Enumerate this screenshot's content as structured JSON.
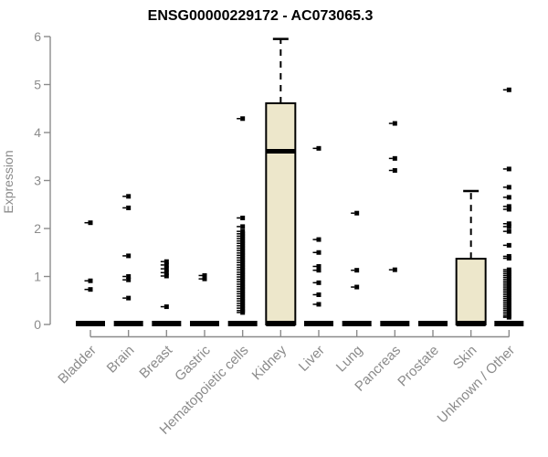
{
  "page": {
    "background": "#ffffff"
  },
  "chart_data": {
    "type": "boxplot",
    "title": "ENSG00000229172 - AC073065.3",
    "xlabel": "",
    "ylabel": "Expression",
    "ylim": [
      0,
      6
    ],
    "yticks": [
      0,
      1,
      2,
      3,
      4,
      5,
      6
    ],
    "grid": false,
    "legend": "none",
    "colors": {
      "box_fill": "#ede7cb",
      "box_stroke": "#000000",
      "median": "#000000",
      "outlier": "#000000",
      "axis": "#8b8b8b",
      "title": "#000000"
    },
    "categories": [
      "Bladder",
      "Brain",
      "Breast",
      "Gastric",
      "Hematopoietic cells",
      "Kidney",
      "Liver",
      "Lung",
      "Pancreas",
      "Prostate",
      "Skin",
      "Unknown / Other"
    ],
    "boxes": [
      {
        "category": "Bladder",
        "q1": 0,
        "median": 0,
        "q3": 0,
        "whisker_low": 0,
        "whisker_high": 0,
        "outliers": [
          2.12,
          0.91,
          0.73
        ]
      },
      {
        "category": "Brain",
        "q1": 0,
        "median": 0,
        "q3": 0,
        "whisker_low": 0,
        "whisker_high": 0,
        "outliers": [
          2.67,
          2.43,
          1.43,
          1.0,
          0.93,
          0.55
        ]
      },
      {
        "category": "Breast",
        "q1": 0,
        "median": 0,
        "q3": 0,
        "whisker_low": 0,
        "whisker_high": 0,
        "outliers": [
          1.31,
          1.24,
          1.16,
          1.08,
          1.01,
          0.37
        ]
      },
      {
        "category": "Gastric",
        "q1": 0,
        "median": 0,
        "q3": 0,
        "whisker_low": 0,
        "whisker_high": 0,
        "outliers": [
          1.02,
          0.95
        ]
      },
      {
        "category": "Hematopoietic cells",
        "q1": 0,
        "median": 0,
        "q3": 0,
        "whisker_low": 0,
        "whisker_high": 0,
        "outliers": [
          4.29,
          2.22,
          2.04,
          1.94,
          1.89,
          1.84,
          1.79,
          1.74,
          1.69,
          1.64,
          1.59,
          1.54,
          1.49,
          1.44,
          1.39,
          1.34,
          1.29,
          1.24,
          1.19,
          1.14,
          1.09,
          1.04,
          0.99,
          0.94,
          0.89,
          0.84,
          0.79,
          0.74,
          0.69,
          0.64,
          0.59,
          0.54,
          0.49,
          0.44,
          0.39,
          0.34,
          0.29,
          0.25
        ]
      },
      {
        "category": "Kidney",
        "q1": 0,
        "median": 3.61,
        "q3": 4.61,
        "whisker_low": 0,
        "whisker_high": 5.95,
        "outliers": []
      },
      {
        "category": "Liver",
        "q1": 0,
        "median": 0,
        "q3": 0,
        "whisker_low": 0,
        "whisker_high": 0,
        "outliers": [
          3.67,
          1.77,
          1.5,
          1.21,
          1.13,
          0.87,
          0.62,
          0.42
        ]
      },
      {
        "category": "Lung",
        "q1": 0,
        "median": 0,
        "q3": 0,
        "whisker_low": 0,
        "whisker_high": 0,
        "outliers": [
          2.32,
          1.13,
          0.78
        ]
      },
      {
        "category": "Pancreas",
        "q1": 0,
        "median": 0,
        "q3": 0,
        "whisker_low": 0,
        "whisker_high": 0,
        "outliers": [
          4.19,
          3.46,
          3.21,
          1.14
        ]
      },
      {
        "category": "Prostate",
        "q1": 0,
        "median": 0,
        "q3": 0,
        "whisker_low": 0,
        "whisker_high": 0,
        "outliers": []
      },
      {
        "category": "Skin",
        "q1": 0,
        "median": 0,
        "q3": 1.37,
        "whisker_low": 0,
        "whisker_high": 2.78,
        "outliers": []
      },
      {
        "category": "Unknown / Other",
        "q1": 0,
        "median": 0,
        "q3": 0,
        "whisker_low": 0,
        "whisker_high": 0,
        "outliers": [
          4.89,
          3.24,
          2.86,
          2.65,
          2.46,
          2.4,
          2.1,
          2.04,
          1.94,
          1.65,
          1.42,
          1.38,
          1.14,
          1.1,
          1.06,
          1.02,
          0.98,
          0.94,
          0.9,
          0.86,
          0.82,
          0.78,
          0.74,
          0.7,
          0.66,
          0.62,
          0.58,
          0.54,
          0.5,
          0.46,
          0.42,
          0.38,
          0.34,
          0.3,
          0.26,
          0.22,
          0.18,
          0.15
        ]
      }
    ]
  }
}
